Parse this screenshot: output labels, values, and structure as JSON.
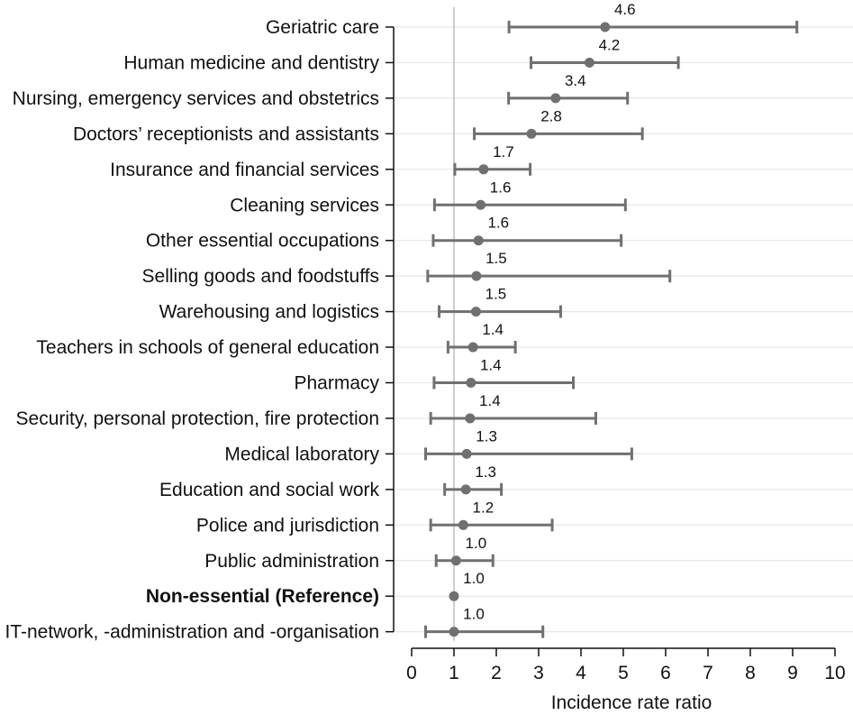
{
  "chart_data": {
    "type": "forest",
    "xlabel": "Incidence rate ratio",
    "xlim": [
      0,
      10
    ],
    "xticks": [
      "0",
      "1",
      "2",
      "3",
      "4",
      "5",
      "6",
      "7",
      "8",
      "9",
      "10"
    ],
    "reference_line": 1,
    "reference_category": "Non-essential (Reference)",
    "grid": "horizontal",
    "rows": [
      {
        "category": "Geriatric care",
        "estimate": 4.57,
        "lower": 2.3,
        "upper": 9.1,
        "label": "4.6"
      },
      {
        "category": "Human medicine and dentistry",
        "estimate": 4.2,
        "lower": 2.82,
        "upper": 6.3,
        "label": "4.2"
      },
      {
        "category": "Nursing, emergency services and obstetrics",
        "estimate": 3.4,
        "lower": 2.29,
        "upper": 5.1,
        "label": "3.4"
      },
      {
        "category": "Doctors’ receptionists and assistants",
        "estimate": 2.83,
        "lower": 1.48,
        "upper": 5.45,
        "label": "2.8"
      },
      {
        "category": "Insurance and financial services",
        "estimate": 1.7,
        "lower": 1.02,
        "upper": 2.8,
        "label": "1.7"
      },
      {
        "category": "Cleaning services",
        "estimate": 1.63,
        "lower": 0.54,
        "upper": 5.05,
        "label": "1.6"
      },
      {
        "category": "Other essential occupations",
        "estimate": 1.58,
        "lower": 0.51,
        "upper": 4.95,
        "label": "1.6"
      },
      {
        "category": "Selling goods and foodstuffs",
        "estimate": 1.53,
        "lower": 0.38,
        "upper": 6.1,
        "label": "1.5"
      },
      {
        "category": "Warehousing and logistics",
        "estimate": 1.52,
        "lower": 0.65,
        "upper": 3.52,
        "label": "1.5"
      },
      {
        "category": "Teachers in schools of general education",
        "estimate": 1.45,
        "lower": 0.86,
        "upper": 2.45,
        "label": "1.4"
      },
      {
        "category": "Pharmacy",
        "estimate": 1.4,
        "lower": 0.53,
        "upper": 3.82,
        "label": "1.4"
      },
      {
        "category": "Security, personal protection, fire protection",
        "estimate": 1.38,
        "lower": 0.45,
        "upper": 4.35,
        "label": "1.4"
      },
      {
        "category": "Medical laboratory",
        "estimate": 1.3,
        "lower": 0.33,
        "upper": 5.2,
        "label": "1.3"
      },
      {
        "category": "Education and social work",
        "estimate": 1.28,
        "lower": 0.78,
        "upper": 2.12,
        "label": "1.3"
      },
      {
        "category": "Police and jurisdiction",
        "estimate": 1.22,
        "lower": 0.45,
        "upper": 3.32,
        "label": "1.2"
      },
      {
        "category": "Public administration",
        "estimate": 1.05,
        "lower": 0.58,
        "upper": 1.92,
        "label": "1.0"
      },
      {
        "category": "Non-essential (Reference)",
        "estimate": 1.0,
        "lower": null,
        "upper": null,
        "label": "1.0"
      },
      {
        "category": "IT-network, -administration and -organisation",
        "estimate": 1.0,
        "lower": 0.33,
        "upper": 3.1,
        "label": "1.0"
      }
    ]
  },
  "colors": {
    "marker": "#707070",
    "grid": "#e6e6e6",
    "reference_line": "#bdbdbd",
    "axis": "#111111"
  }
}
